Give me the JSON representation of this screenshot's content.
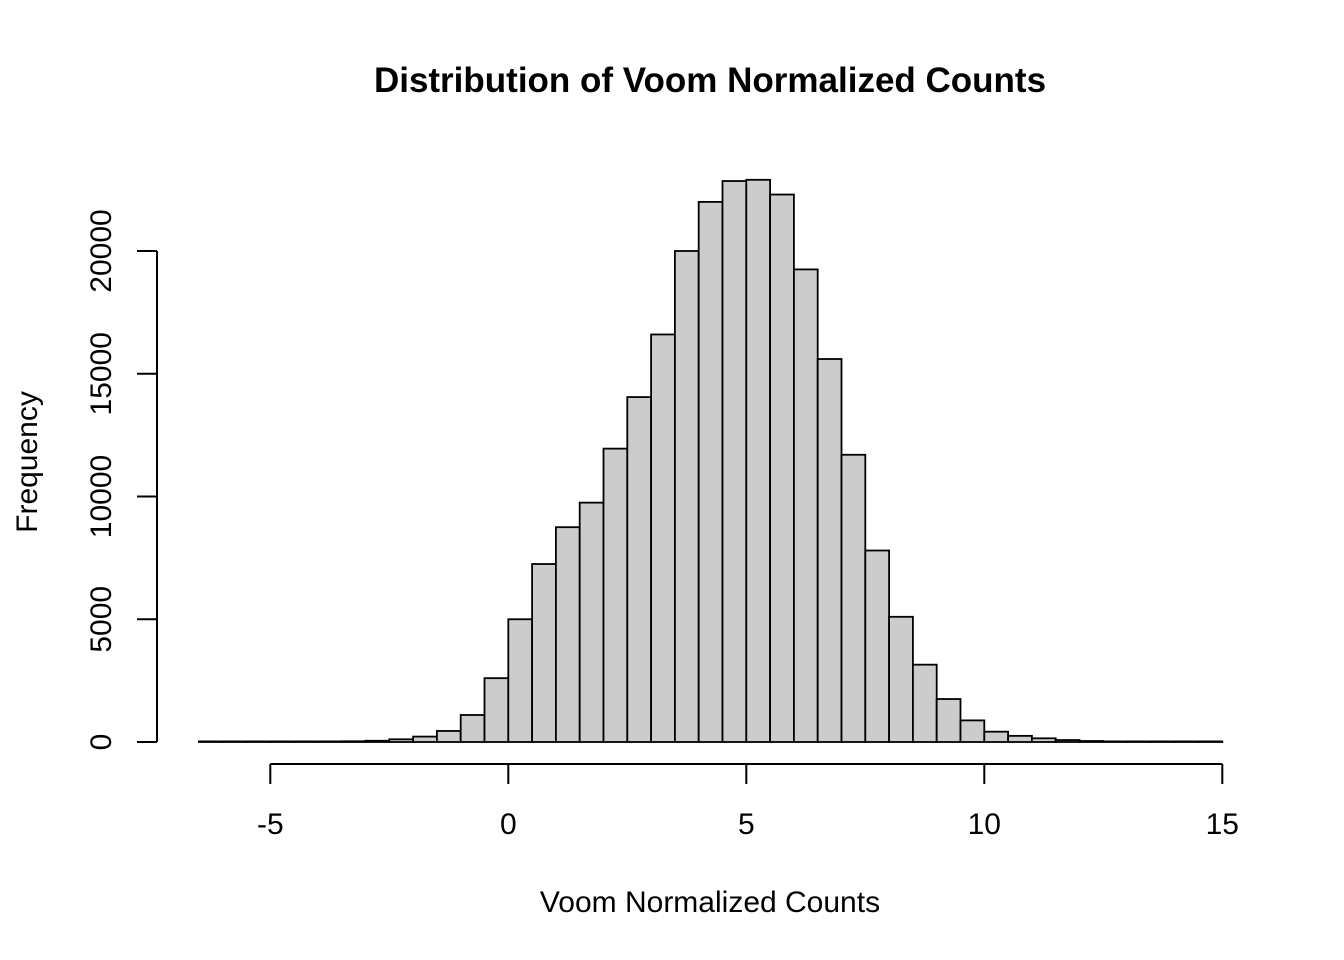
{
  "chart_data": {
    "type": "bar",
    "title": "Distribution of Voom Normalized Counts",
    "xlabel": "Voom Normalized Counts",
    "ylabel": "Frequency",
    "bin_width": 0.5,
    "bin_start": -6.5,
    "xlim": [
      -6.5,
      15
    ],
    "ylim": [
      0,
      23000
    ],
    "x_axis_range": [
      -5,
      15
    ],
    "y_axis_range": [
      0,
      20000
    ],
    "x_ticks": [
      -5,
      0,
      5,
      10,
      15
    ],
    "x_tick_labels": [
      "-5",
      "0",
      "5",
      "10",
      "15"
    ],
    "y_ticks": [
      0,
      5000,
      10000,
      15000,
      20000
    ],
    "y_tick_labels": [
      "0",
      "5000",
      "10000",
      "15000",
      "20000"
    ],
    "values": [
      2,
      3,
      5,
      8,
      10,
      20,
      30,
      50,
      110,
      220,
      450,
      1100,
      2600,
      5000,
      7250,
      8750,
      9750,
      11950,
      14050,
      16600,
      20000,
      22000,
      22850,
      22900,
      22300,
      19250,
      15600,
      11700,
      7800,
      5100,
      3150,
      1750,
      880,
      420,
      250,
      150,
      80,
      40,
      20,
      10,
      6,
      3,
      2
    ],
    "bar_color": "#cccccc",
    "grid": false,
    "legend": "none"
  }
}
